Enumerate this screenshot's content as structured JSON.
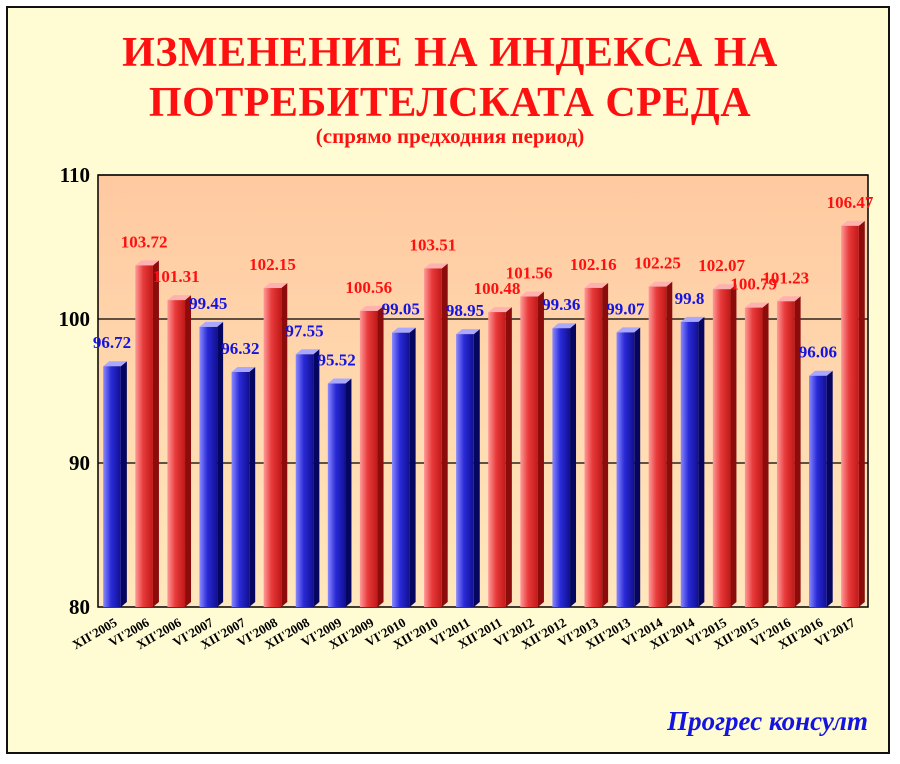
{
  "chart_data": {
    "type": "bar",
    "title": "ИЗМЕНЕНИЕ НА ИНДЕКСА НА\nПОТРЕБИТЕЛСКАТА СРЕДА",
    "subtitle": "(спрямо предходния период)",
    "categories": [
      "XII'2005",
      "VI'2006",
      "XII'2006",
      "VI'2007",
      "XII'2007",
      "VI'2008",
      "XII'2008",
      "VI'2009",
      "XII'2009",
      "VI'2010",
      "XII'2010",
      "VI'2011",
      "XII'2011",
      "VI'2012",
      "XII'2012",
      "VI'2013",
      "XII'2013",
      "VI'2014",
      "XII'2014",
      "VI'2015",
      "XII'2015",
      "VI'2016",
      "XII'2016",
      "VI'2017"
    ],
    "values": [
      96.72,
      103.72,
      101.31,
      99.45,
      96.32,
      102.15,
      97.55,
      95.52,
      100.56,
      99.05,
      103.51,
      98.95,
      100.48,
      101.56,
      99.36,
      102.16,
      99.07,
      102.25,
      99.8,
      102.07,
      100.79,
      101.23,
      96.06,
      106.47
    ],
    "value_labels": [
      "96.72",
      "103.72",
      "101.31",
      "99.45",
      "96.32",
      "102.15",
      "97.55",
      "95.52",
      "100.56",
      "99.05",
      "103.51",
      "98.95",
      "100.48",
      "101.56",
      "99.36",
      "102.16",
      "99.07",
      "102.25",
      "99.8",
      "102.07",
      "100.79",
      "101.23",
      "96.06",
      "106.47"
    ],
    "rule": "bars at or above 100 are red, bars below 100 are blue",
    "ylim": [
      80,
      110
    ],
    "yticks": [
      80,
      90,
      100,
      110
    ],
    "gridlines": [
      90,
      100,
      110
    ],
    "grid": true,
    "legend": "none",
    "colors": {
      "above_100": "#e83a3a",
      "below_100": "#2a2ad8",
      "plot_background_upper": "#ffc9a0",
      "plot_background_lower": "#ffe7bd",
      "value_label_above_100": "#ff1010",
      "value_label_below_100": "#1414e0"
    }
  },
  "brand": "Прогрес консулт",
  "colors": {
    "page_background": "#fffbd2",
    "title": "#ff1010",
    "brand": "#1414e0"
  }
}
